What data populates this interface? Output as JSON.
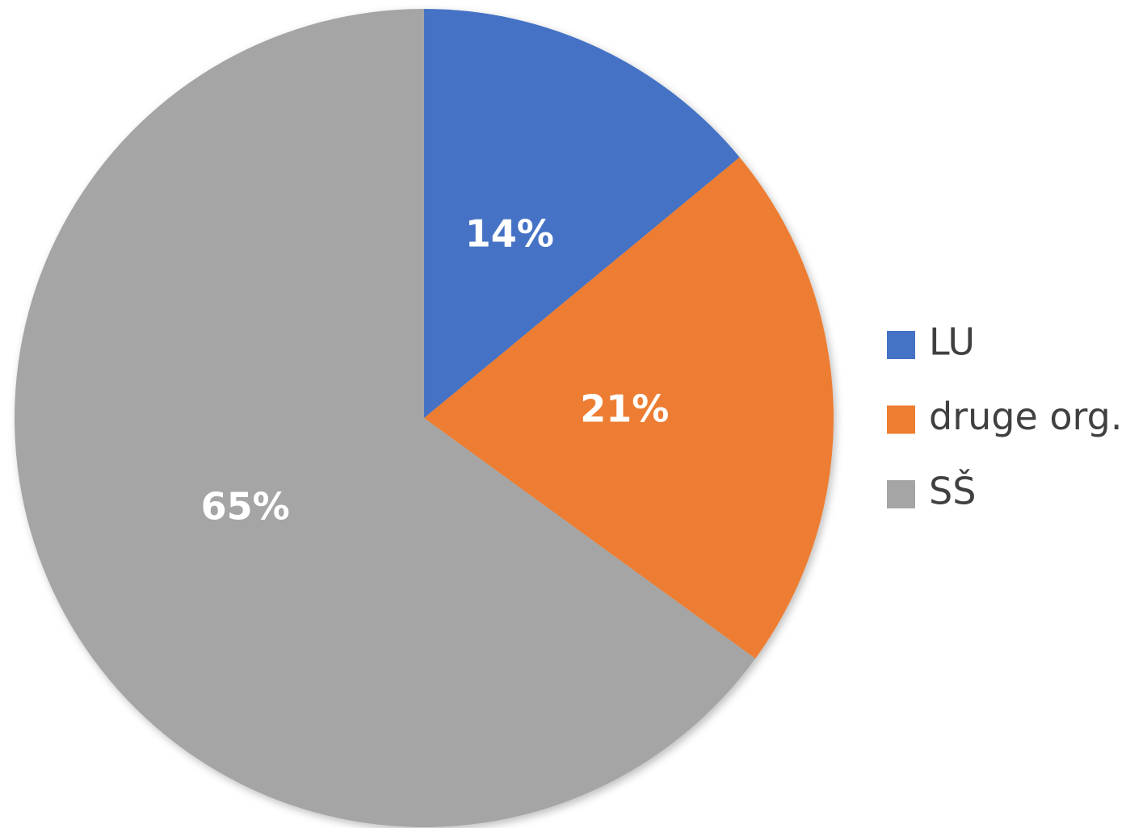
{
  "chart_data": {
    "type": "pie",
    "categories": [
      "LU",
      "druge org.",
      "SŠ"
    ],
    "values": [
      14,
      21,
      65
    ],
    "value_labels": [
      "14%",
      "21%",
      "65%"
    ],
    "colors": [
      "#4472c4",
      "#ed7d31",
      "#a5a5a5"
    ],
    "legend": "right"
  }
}
